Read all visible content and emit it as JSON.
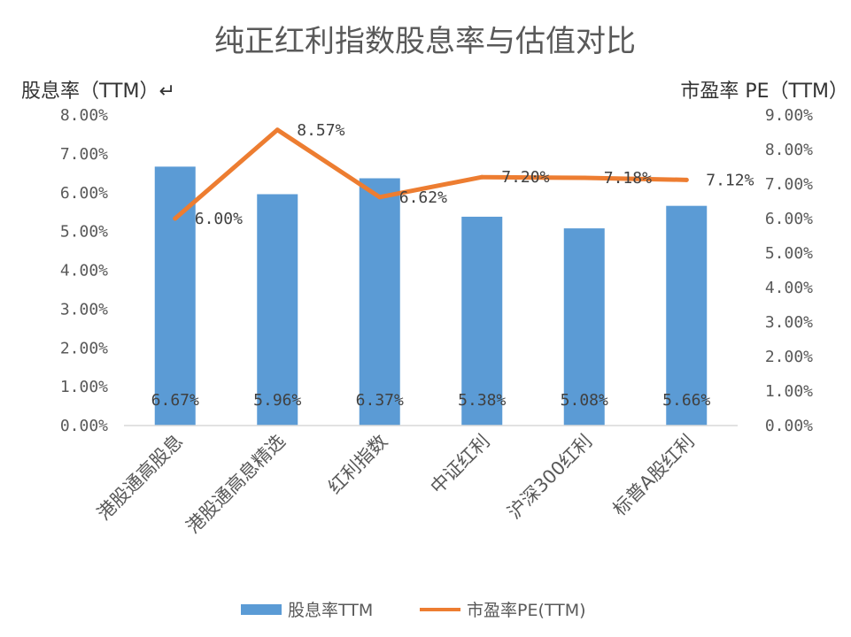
{
  "chart_data": {
    "type": "bar",
    "title": "纯正红利指数股息率与估值对比",
    "categories": [
      "港股通高股息",
      "港股通高息精选",
      "红利指数",
      "中证红利",
      "沪深300红利",
      "标普A股红利"
    ],
    "series": [
      {
        "name": "股息率TTM",
        "type": "bar",
        "axis": "left",
        "values": [
          6.67,
          5.96,
          6.37,
          5.38,
          5.08,
          5.66
        ],
        "labels": [
          "6.67%",
          "5.96%",
          "6.37%",
          "5.38%",
          "5.08%",
          "5.66%"
        ],
        "color": "#5B9BD5"
      },
      {
        "name": "市盈率PE(TTM)",
        "type": "line",
        "axis": "right",
        "values": [
          6.0,
          8.57,
          6.62,
          7.2,
          7.18,
          7.12
        ],
        "labels": [
          "6.00%",
          "8.57%",
          "6.62%",
          "7.20%",
          "7.18%",
          "7.12%"
        ],
        "color": "#ED7D31"
      }
    ],
    "ylabel": "股息率（TTM）↵",
    "y2label": "市盈率 PE（TTM）",
    "ylim": [
      0,
      8
    ],
    "y2lim": [
      0,
      9
    ],
    "yticks": [
      "0.00%",
      "1.00%",
      "2.00%",
      "3.00%",
      "4.00%",
      "5.00%",
      "6.00%",
      "7.00%",
      "8.00%"
    ],
    "y2ticks": [
      "0.00%",
      "1.00%",
      "2.00%",
      "3.00%",
      "4.00%",
      "5.00%",
      "6.00%",
      "7.00%",
      "8.00%",
      "9.00%"
    ],
    "grid": false,
    "legend": "bottom"
  }
}
